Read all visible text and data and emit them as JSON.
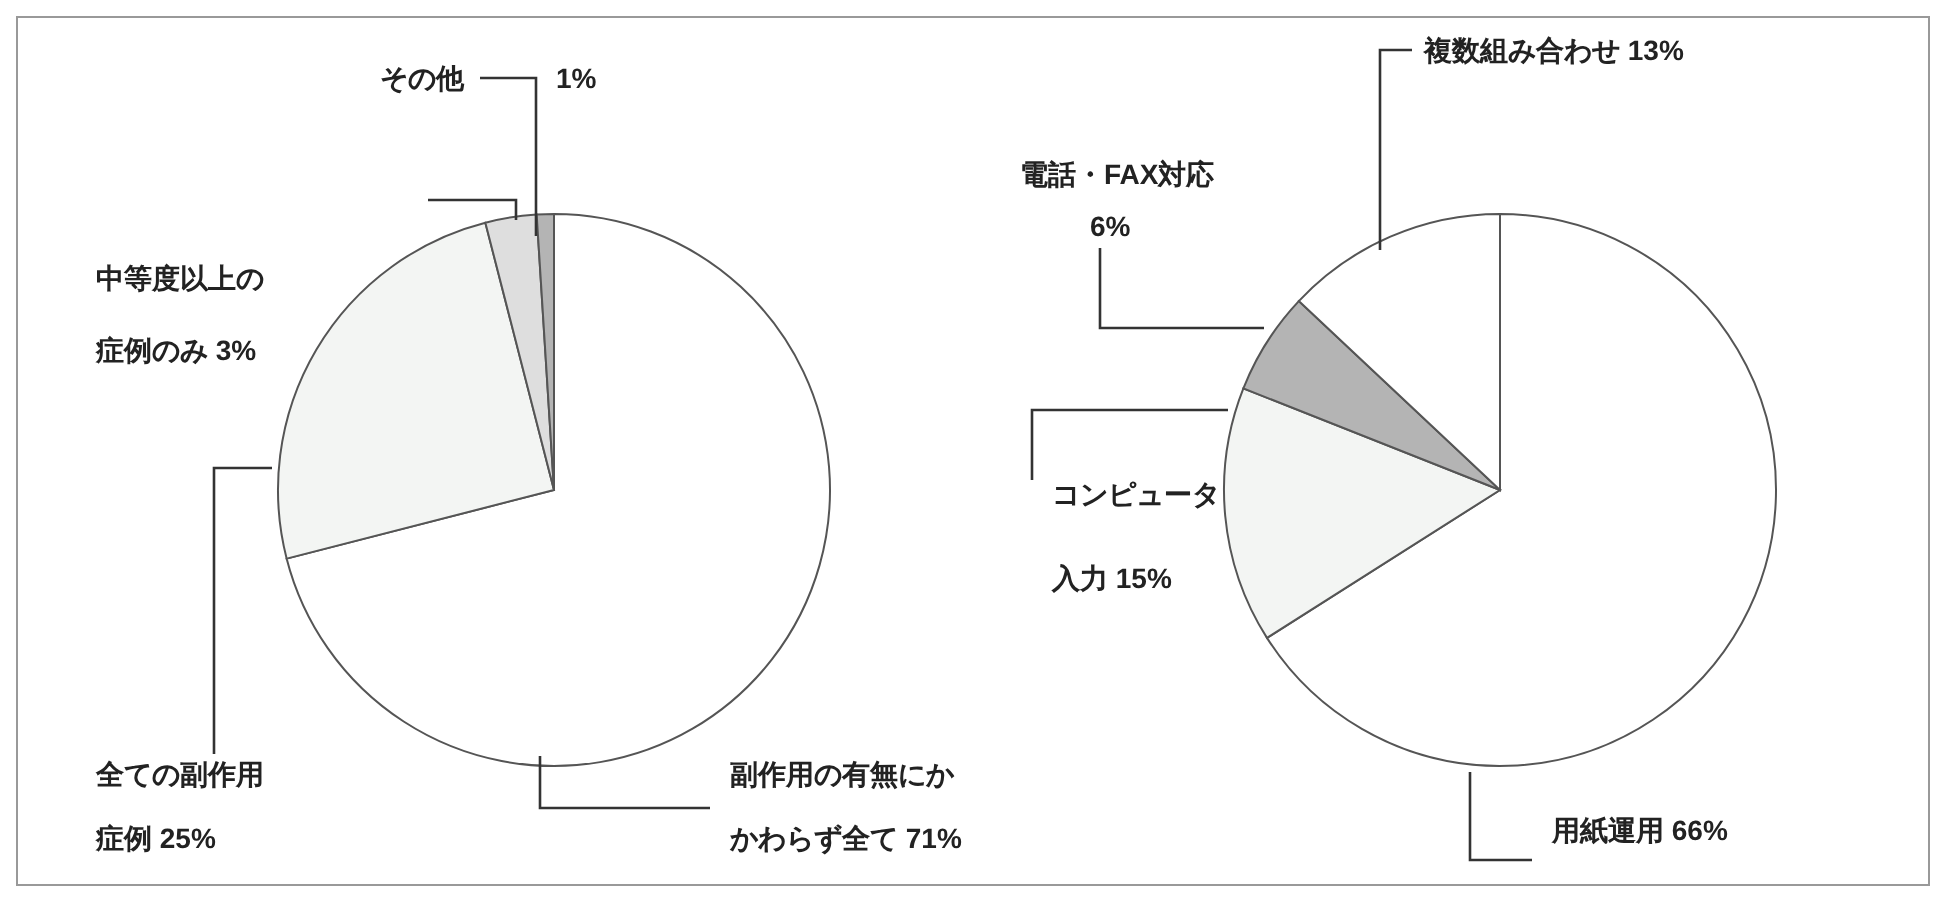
{
  "chart_data": [
    {
      "type": "pie",
      "categories": [
        "副作用の有無にかかわらず全て",
        "全ての副作用症例",
        "中等度以上の症例のみ",
        "その他"
      ],
      "values": [
        71,
        25,
        3,
        1
      ],
      "value_labels": [
        "71%",
        "25%",
        "3%",
        "1%"
      ],
      "colors": [
        "#ffffff",
        "#f3f5f3",
        "#dedede",
        "#b4b4b4"
      ]
    },
    {
      "type": "pie",
      "categories": [
        "用紙運用",
        "コンピュータ入力",
        "電話・FAX対応",
        "複数組み合わせ"
      ],
      "values": [
        66,
        15,
        6,
        13
      ],
      "value_labels": [
        "66%",
        "15%",
        "6%",
        "13%"
      ],
      "colors": [
        "#ffffff",
        "#f3f5f3",
        "#b4b4b4",
        "#ffffff"
      ]
    }
  ]
}
